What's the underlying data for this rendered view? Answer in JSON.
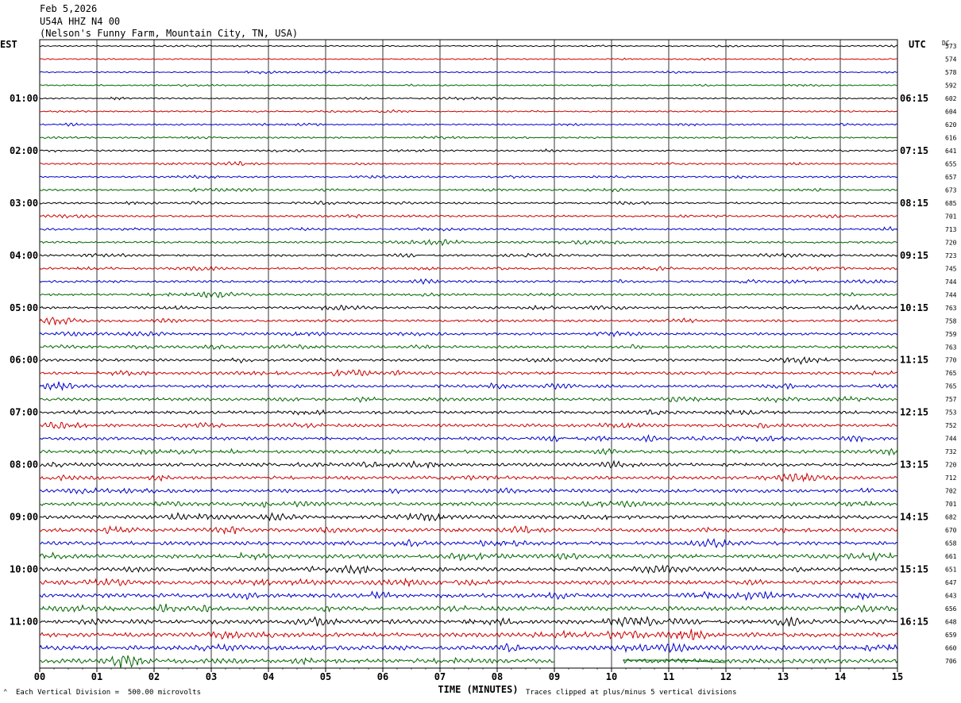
{
  "header": {
    "date": "Feb 5,2026",
    "station": "U54A HHZ N4 00",
    "location": "(Nelson's Funny Farm, Mountain City, TN, USA)"
  },
  "axes": {
    "left_label": "EST",
    "right_label": "UTC",
    "dc_label": "DC",
    "xlabel": "TIME (MINUTES)"
  },
  "footer": {
    "scale_note": "Each Vertical Division =  500.00 microvolts",
    "clip_note": "Traces clipped at plus/minus 5 vertical divisions"
  },
  "chart_data": {
    "type": "line",
    "subtype": "helicorder",
    "grid": true,
    "xlim": [
      0,
      15
    ],
    "x_ticks": [
      "00",
      "01",
      "02",
      "03",
      "04",
      "05",
      "06",
      "07",
      "08",
      "09",
      "10",
      "11",
      "12",
      "13",
      "14",
      "15"
    ],
    "trace_colors": [
      "#000000",
      "#cc0000",
      "#0000cc",
      "#006600"
    ],
    "trace_count": 48,
    "left_hour_labels": [
      "01:00",
      "02:00",
      "03:00",
      "04:00",
      "05:00",
      "06:00",
      "07:00",
      "08:00",
      "09:00",
      "10:00",
      "11:00"
    ],
    "right_hour_labels": [
      "06:15",
      "07:15",
      "08:15",
      "09:15",
      "10:15",
      "11:15",
      "12:15",
      "13:15",
      "14:15",
      "15:15",
      "16:15"
    ],
    "dc_offsets": [
      573,
      574,
      578,
      592,
      602,
      604,
      620,
      616,
      641,
      655,
      657,
      673,
      685,
      701,
      713,
      720,
      723,
      745,
      744,
      744,
      763,
      758,
      759,
      763,
      770,
      765,
      765,
      757,
      753,
      752,
      744,
      732,
      720,
      712,
      702,
      701,
      682,
      670,
      658,
      661,
      651,
      647,
      643,
      656,
      648,
      659,
      660,
      706
    ],
    "data_gap_last_trace_minutes": [
      9.0,
      10.2
    ]
  }
}
